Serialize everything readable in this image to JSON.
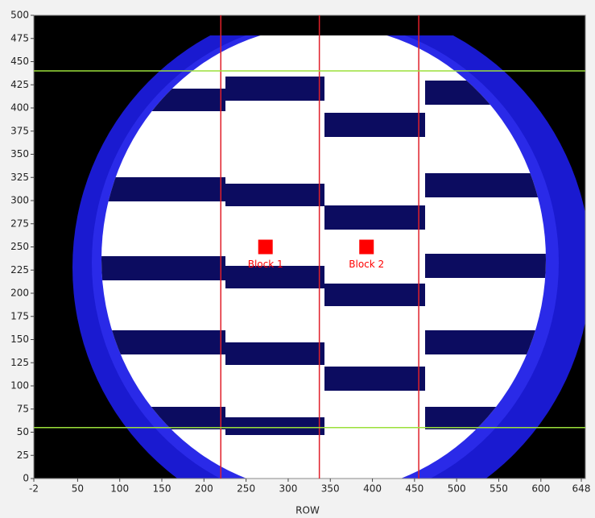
{
  "chart_data": {
    "type": "image",
    "x_label": "ROW",
    "xlim": [
      -2,
      648
    ],
    "xticks": [
      -2,
      50,
      100,
      150,
      200,
      250,
      300,
      350,
      400,
      450,
      500,
      550,
      600,
      648
    ],
    "ylim": [
      0,
      500
    ],
    "yticks": [
      0,
      25,
      50,
      75,
      100,
      125,
      150,
      175,
      200,
      225,
      250,
      275,
      300,
      325,
      350,
      375,
      400,
      425,
      450,
      475,
      500
    ],
    "x_cursors": {
      "color": "#e0202a",
      "values": [
        220,
        337,
        455
      ]
    },
    "y_cursors": {
      "color": "#9be03a",
      "values": [
        440,
        55
      ]
    },
    "markers": {
      "color": "#ff0000",
      "labels": [
        "Block 1",
        "Block 2"
      ],
      "x": [
        273,
        393
      ],
      "y": [
        250,
        250
      ]
    }
  }
}
